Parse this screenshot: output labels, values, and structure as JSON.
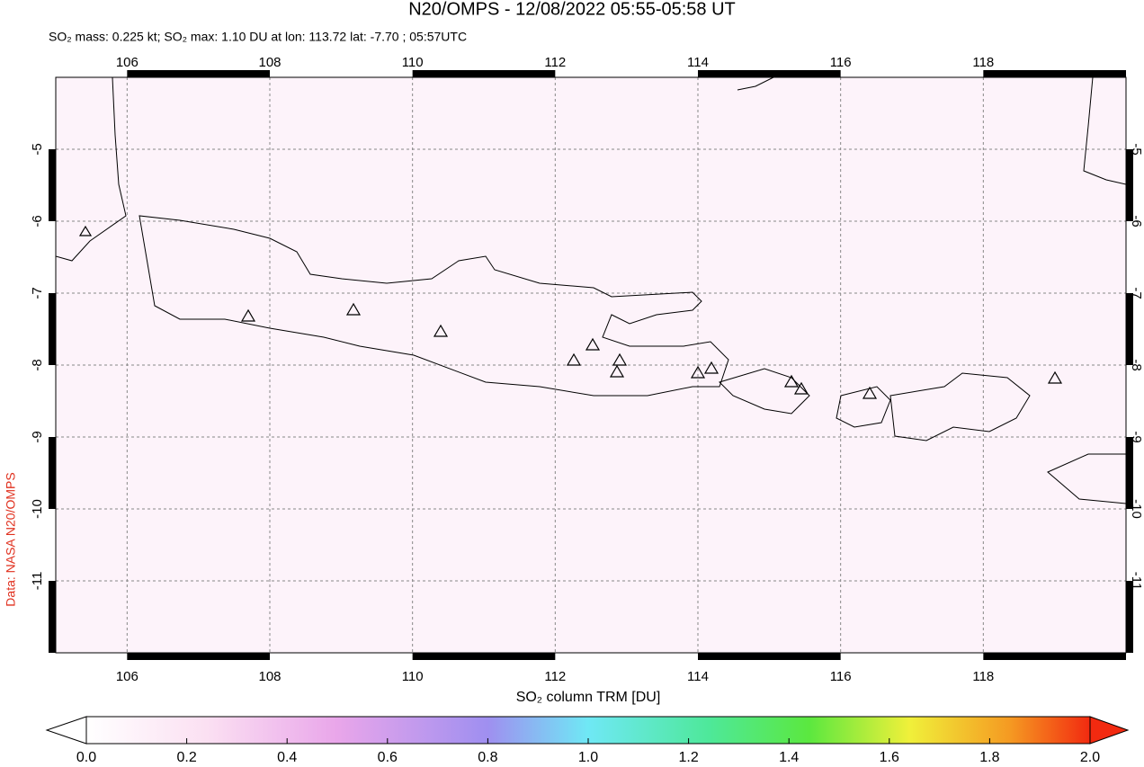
{
  "chart_data": {
    "type": "map",
    "title": "N20/OMPS - 12/08/2022 05:55-05:58 UT",
    "subtitle": "SO₂ mass: 0.225 kt; SO₂ max: 1.10 DU at lon: 113.72 lat: -7.70 ; 05:57UTC",
    "credit": "Data: NASA N20/OMPS",
    "xlim": [
      105,
      120
    ],
    "ylim": [
      -12,
      -4
    ],
    "xticks": [
      106,
      108,
      110,
      112,
      114,
      116,
      118
    ],
    "yticks": [
      -5,
      -6,
      -7,
      -8,
      -9,
      -10,
      -11
    ],
    "grid": true,
    "colorbar": {
      "label": "SO₂ column TRM [DU]",
      "clim": [
        0,
        2
      ],
      "ticks": [
        {
          "value": 0,
          "label": "0.0"
        },
        {
          "value": 0.2,
          "label": "0.2"
        },
        {
          "value": 0.4,
          "label": "0.4"
        },
        {
          "value": 0.6,
          "label": "0.6"
        },
        {
          "value": 0.8,
          "label": "0.8"
        },
        {
          "value": 1,
          "label": "1.0"
        },
        {
          "value": 1.2,
          "label": "1.2"
        },
        {
          "value": 1.4,
          "label": "1.4"
        },
        {
          "value": 1.6,
          "label": "1.6"
        },
        {
          "value": 1.8,
          "label": "1.8"
        },
        {
          "value": 2,
          "label": "2.0"
        }
      ]
    }
  }
}
